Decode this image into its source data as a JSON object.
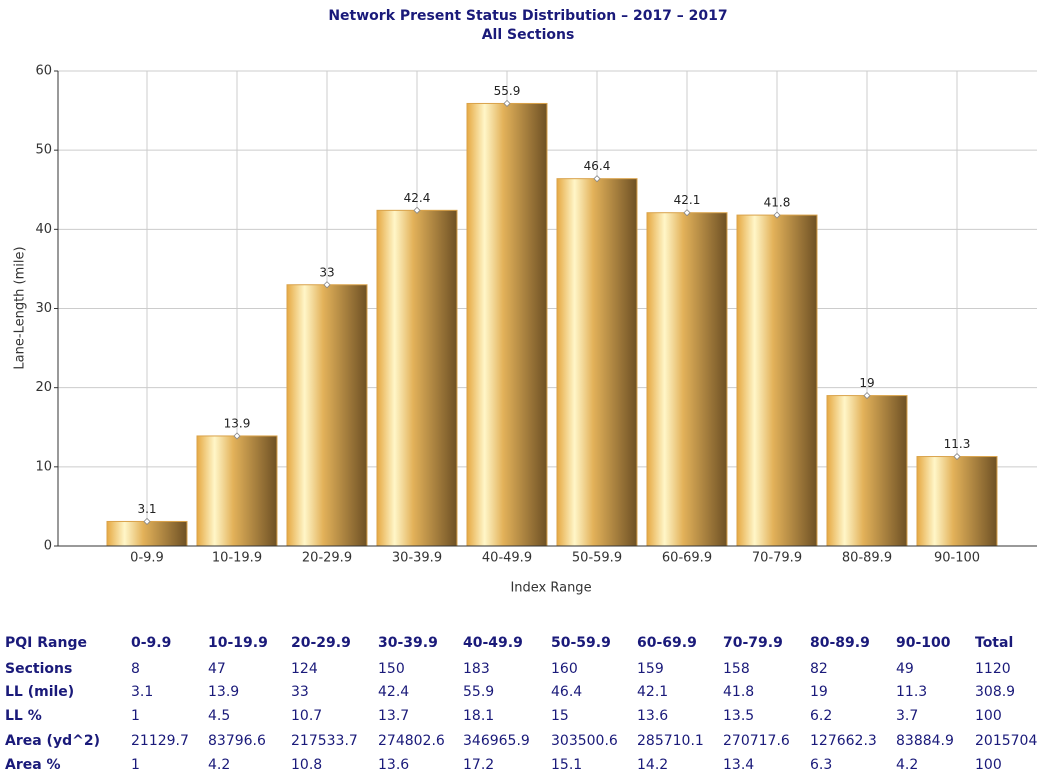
{
  "chart_data": {
    "type": "bar",
    "title": "Network Present Status Distribution – 2017 – 2017",
    "subtitle": "All Sections",
    "y_label": "Lane-Length (mile)",
    "x_label": "Index Range",
    "categories": [
      "0-9.9",
      "10-19.9",
      "20-29.9",
      "30-39.9",
      "40-49.9",
      "50-59.9",
      "60-69.9",
      "70-79.9",
      "80-89.9",
      "90-100"
    ],
    "values": [
      3.1,
      13.9,
      33,
      42.4,
      55.9,
      46.4,
      42.1,
      41.8,
      19,
      11.3
    ],
    "color": "#d9a24a",
    "ylim": [
      0,
      60
    ],
    "yticks": [
      0,
      10,
      20,
      30,
      40,
      50,
      60
    ],
    "grid": true
  },
  "table": {
    "header": [
      "PQI Range",
      "0-9.9",
      "10-19.9",
      "20-29.9",
      "30-39.9",
      "40-49.9",
      "50-59.9",
      "60-69.9",
      "70-79.9",
      "80-89.9",
      "90-100",
      "Total"
    ],
    "rows": [
      [
        "Sections",
        "8",
        "47",
        "124",
        "150",
        "183",
        "160",
        "159",
        "158",
        "82",
        "49",
        "1120"
      ],
      [
        "LL (mile)",
        "3.1",
        "13.9",
        "33",
        "42.4",
        "55.9",
        "46.4",
        "42.1",
        "41.8",
        "19",
        "11.3",
        "308.9"
      ],
      [
        "LL %",
        "1",
        "4.5",
        "10.7",
        "13.7",
        "18.1",
        "15",
        "13.6",
        "13.5",
        "6.2",
        "3.7",
        "100"
      ],
      [
        "Area (yd^2)",
        "21129.7",
        "83796.6",
        "217533.7",
        "274802.6",
        "346965.9",
        "303500.6",
        "285710.1",
        "270717.6",
        "127662.3",
        "83884.9",
        "2015704"
      ],
      [
        "Area %",
        "1",
        "4.2",
        "10.8",
        "13.6",
        "17.2",
        "15.1",
        "14.2",
        "13.4",
        "6.3",
        "4.2",
        "100"
      ]
    ]
  }
}
